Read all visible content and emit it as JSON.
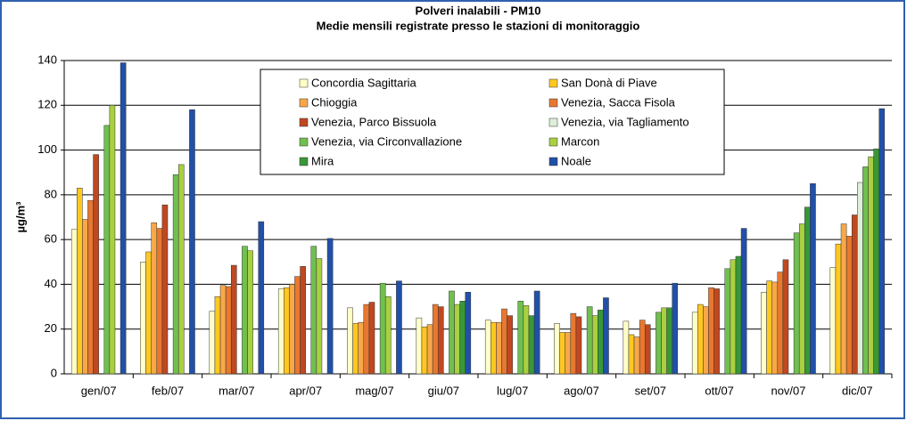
{
  "chart_data": {
    "type": "bar",
    "title": "Polveri inalabili - PM10",
    "subtitle": "Medie mensili registrate presso le stazioni di monitoraggio",
    "y_label": "µg/m³",
    "categories": [
      "gen/07",
      "feb/07",
      "mar/07",
      "apr/07",
      "mag/07",
      "giu/07",
      "lug/07",
      "ago/07",
      "set/07",
      "ott/07",
      "nov/07",
      "dic/07"
    ],
    "series": [
      {
        "name": "Concordia Sagittaria",
        "color": "#ffffc8",
        "values": [
          64.5,
          50,
          28,
          38,
          29.5,
          25,
          24,
          22.5,
          23.5,
          27.5,
          36.5,
          47.5
        ]
      },
      {
        "name": "San Donà di Piave",
        "color": "#ffc820",
        "values": [
          83,
          54.5,
          34.5,
          38.5,
          22.5,
          21,
          23,
          18.5,
          17.5,
          31,
          41.5,
          58
        ]
      },
      {
        "name": "Chioggia",
        "color": "#f8a848",
        "values": [
          69,
          67.5,
          39.5,
          40,
          23,
          22,
          23,
          18.5,
          16.5,
          30,
          41,
          67
        ]
      },
      {
        "name": "Venezia, Sacca Fisola",
        "color": "#e87830",
        "values": [
          77.5,
          65,
          39,
          43.5,
          31,
          31,
          29,
          27,
          24,
          38.5,
          45.5,
          61.5
        ]
      },
      {
        "name": "Venezia, Parco Bissuola",
        "color": "#c04820",
        "values": [
          98,
          75.5,
          48.5,
          48,
          32,
          30,
          26,
          25.5,
          22,
          38,
          51,
          71
        ]
      },
      {
        "name": "Venezia, via Tagliamento",
        "color": "#dcefd8",
        "values": [
          null,
          null,
          null,
          null,
          null,
          null,
          null,
          null,
          null,
          null,
          null,
          85.5
        ]
      },
      {
        "name": "Venezia, via Circonvallazione",
        "color": "#70c050",
        "values": [
          111,
          89,
          57,
          57,
          40.5,
          37,
          32.5,
          30,
          27.5,
          47,
          63,
          92.5
        ]
      },
      {
        "name": "Marcon",
        "color": "#a8d040",
        "values": [
          120,
          93.5,
          55,
          51.5,
          34.5,
          31,
          30.5,
          26,
          29.5,
          51,
          67,
          97
        ]
      },
      {
        "name": "Mira",
        "color": "#389838",
        "values": [
          null,
          null,
          null,
          null,
          null,
          32.5,
          26,
          28.5,
          29.5,
          52.5,
          74.5,
          100.5
        ]
      },
      {
        "name": "Noale",
        "color": "#2050a8",
        "values": [
          139,
          118,
          68,
          60.5,
          41.5,
          36.5,
          37,
          34,
          40.5,
          65,
          85,
          118.5
        ]
      }
    ],
    "ylim": [
      0,
      140
    ],
    "yticks": [
      0,
      20,
      40,
      60,
      80,
      100,
      120,
      140
    ],
    "grid": true
  }
}
